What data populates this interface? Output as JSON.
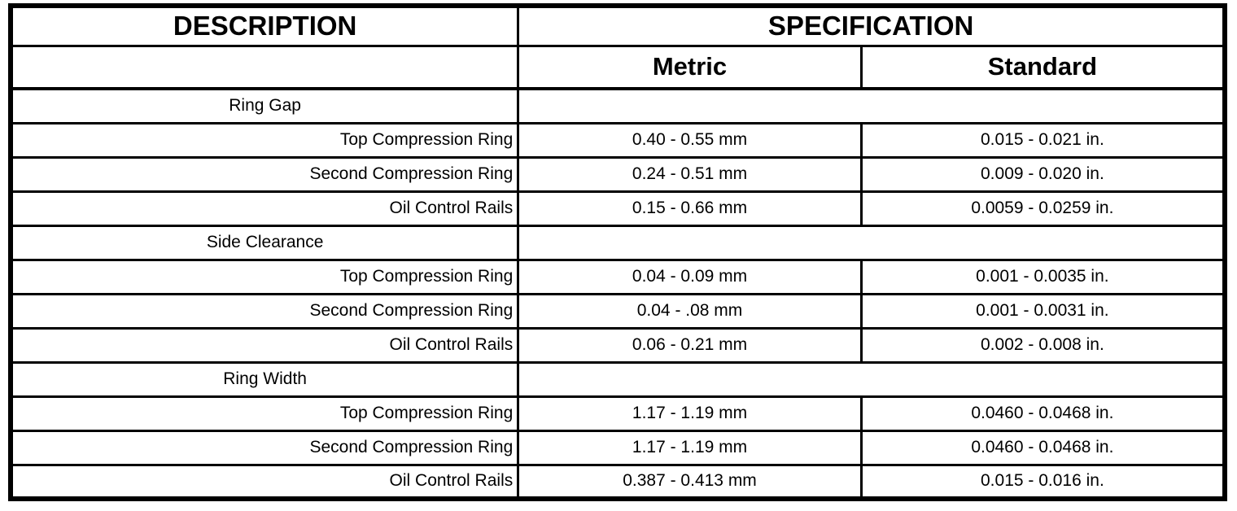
{
  "table": {
    "header": {
      "description": "DESCRIPTION",
      "specification": "SPECIFICATION",
      "metric": "Metric",
      "standard": "Standard"
    },
    "sections": [
      {
        "category": "Ring Gap",
        "rows": [
          {
            "description": "Top Compression Ring",
            "metric": "0.40 - 0.55 mm",
            "standard": "0.015 - 0.021 in."
          },
          {
            "description": "Second Compression Ring",
            "metric": "0.24 - 0.51 mm",
            "standard": "0.009 - 0.020 in."
          },
          {
            "description": "Oil Control Rails",
            "metric": "0.15 - 0.66 mm",
            "standard": "0.0059 - 0.0259 in."
          }
        ]
      },
      {
        "category": "Side Clearance",
        "rows": [
          {
            "description": "Top Compression Ring",
            "metric": "0.04 - 0.09 mm",
            "standard": "0.001 - 0.0035 in."
          },
          {
            "description": "Second Compression Ring",
            "metric": "0.04 - .08 mm",
            "standard": "0.001 - 0.0031 in."
          },
          {
            "description": "Oil Control Rails",
            "metric": "0.06 - 0.21 mm",
            "standard": "0.002 - 0.008 in."
          }
        ]
      },
      {
        "category": "Ring Width",
        "rows": [
          {
            "description": "Top Compression Ring",
            "metric": "1.17 - 1.19 mm",
            "standard": "0.0460 - 0.0468 in."
          },
          {
            "description": "Second Compression Ring",
            "metric": "1.17 - 1.19 mm",
            "standard": "0.0460 - 0.0468 in."
          },
          {
            "description": "Oil Control Rails",
            "metric": "0.387 - 0.413 mm",
            "standard": "0.015 - 0.016 in."
          }
        ]
      }
    ]
  },
  "colors": {
    "border": "#000000",
    "background": "#ffffff",
    "text": "#000000"
  }
}
